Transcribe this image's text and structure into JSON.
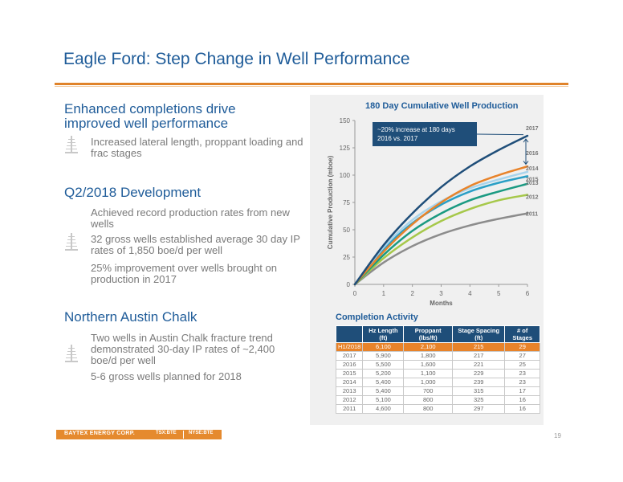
{
  "title": "Eagle Ford: Step Change in Well Performance",
  "left": {
    "sections": [
      {
        "heading": "Enhanced completions drive improved well performance",
        "bullets": [
          "Increased lateral length, proppant loading and frac stages"
        ]
      },
      {
        "heading": "Q2/2018 Development",
        "bullets": [
          "Achieved record production rates from new wells",
          "32 gross wells established average 30 day IP rates of 1,850 boe/d per well",
          "25% improvement over wells brought on production in 2017"
        ]
      },
      {
        "heading": "Northern Austin Chalk",
        "bullets": [
          "Two wells in Austin Chalk fracture trend demonstrated 30-day IP rates of ~2,400 boe/d per well",
          "5-6 gross wells planned for 2018"
        ]
      }
    ]
  },
  "chart_data": {
    "type": "line",
    "title": "180 Day Cumulative Well Production",
    "xlabel": "Months",
    "ylabel": "Cumulative Production (mboe)",
    "xlim": [
      0,
      6
    ],
    "ylim": [
      0,
      150
    ],
    "xticks": [
      0,
      1,
      2,
      3,
      4,
      5,
      6
    ],
    "yticks": [
      0,
      25,
      50,
      75,
      100,
      125,
      150
    ],
    "annotation": "~20% increase at 180 days 2016 vs. 2017",
    "series": [
      {
        "name": "2017",
        "color": "#1f4e79",
        "x": [
          0,
          1,
          2,
          3,
          4,
          5,
          6
        ],
        "y": [
          0,
          36,
          65,
          89,
          108,
          123,
          136
        ]
      },
      {
        "name": "2016",
        "color": "#e8832a",
        "x": [
          0,
          1,
          2,
          3,
          4,
          5,
          6
        ],
        "y": [
          0,
          30,
          55,
          75,
          90,
          100,
          108
        ]
      },
      {
        "name": "2014",
        "color": "#a8d4ec",
        "x": [
          0,
          1,
          2,
          3,
          4,
          5,
          6
        ],
        "y": [
          0,
          34,
          59,
          76,
          88,
          96,
          103
        ]
      },
      {
        "name": "2015",
        "color": "#2a9fc6",
        "x": [
          0,
          1,
          2,
          3,
          4,
          5,
          6
        ],
        "y": [
          0,
          32,
          56,
          73,
          85,
          93,
          99
        ]
      },
      {
        "name": "2013",
        "color": "#1a9a82",
        "x": [
          0,
          1,
          2,
          3,
          4,
          5,
          6
        ],
        "y": [
          0,
          27,
          49,
          65,
          77,
          85,
          92
        ]
      },
      {
        "name": "2012",
        "color": "#a6c84a",
        "x": [
          0,
          1,
          2,
          3,
          4,
          5,
          6
        ],
        "y": [
          0,
          24,
          43,
          58,
          69,
          77,
          82
        ]
      },
      {
        "name": "2011",
        "color": "#8c8c8c",
        "x": [
          0,
          1,
          2,
          3,
          4,
          5,
          6
        ],
        "y": [
          0,
          20,
          35,
          46,
          54,
          60,
          65
        ]
      }
    ]
  },
  "completion": {
    "title": "Completion Activity",
    "headers": [
      "",
      "Hz Length (ft)",
      "Proppant (lbs/ft)",
      "Stage Spacing (ft)",
      "# of Stages"
    ],
    "rows": [
      [
        "H1/2018",
        "6,100",
        "2,100",
        "215",
        "29"
      ],
      [
        "2017",
        "5,900",
        "1,800",
        "217",
        "27"
      ],
      [
        "2016",
        "5,500",
        "1,600",
        "221",
        "25"
      ],
      [
        "2015",
        "5,200",
        "1,100",
        "229",
        "23"
      ],
      [
        "2014",
        "5,400",
        "1,000",
        "239",
        "23"
      ],
      [
        "2013",
        "5,400",
        "700",
        "315",
        "17"
      ],
      [
        "2012",
        "5,100",
        "800",
        "325",
        "16"
      ],
      [
        "2011",
        "4,600",
        "800",
        "297",
        "16"
      ]
    ]
  },
  "footer": {
    "company": "BAYTEX ENERGY CORP.",
    "tag1": "TSX:BTE",
    "tag2": "NYSE:BTE",
    "page": "19"
  },
  "colors": {
    "accent": "#e0832a",
    "brand": "#1f5c99",
    "header": "#1f4e79"
  }
}
